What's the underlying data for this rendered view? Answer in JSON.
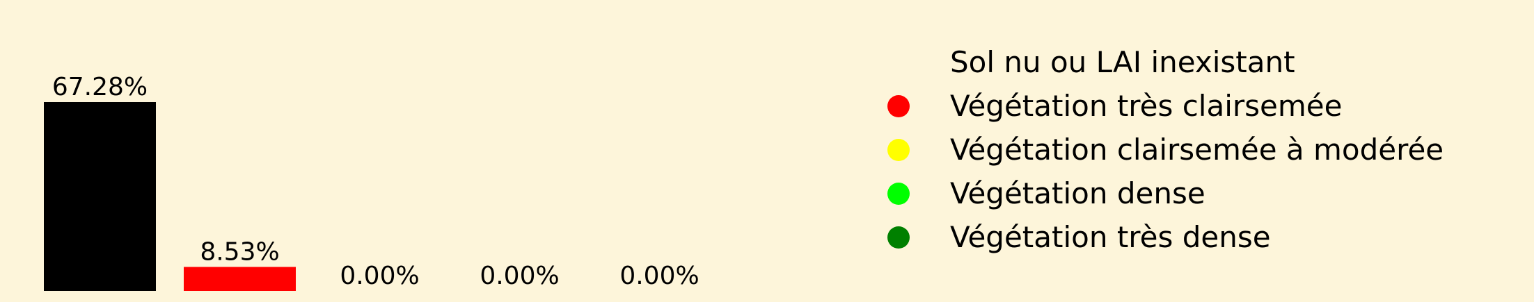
{
  "chart_data": {
    "type": "bar",
    "categories": [
      "Sol nu ou LAI inexistant",
      "Végétation très clairsemée",
      "Végétation clairsemée à modérée",
      "Végétation dense",
      "Végétation très dense"
    ],
    "values": [
      67.28,
      8.53,
      0.0,
      0.0,
      0.0
    ],
    "value_labels": [
      "67.28%",
      "8.53%",
      "0.00%",
      "0.00%",
      "0.00%"
    ],
    "colors": [
      "#000000",
      "#ff0000",
      "#ffff00",
      "#00ff00",
      "#008000"
    ],
    "legend_marker_colors": [
      "#fdf5da",
      "#ff0000",
      "#ffff00",
      "#00ff00",
      "#008000"
    ],
    "title": "",
    "xlabel": "",
    "ylabel": "",
    "ylim": [
      0,
      67.28
    ],
    "grid": false,
    "legend_position": "right",
    "background": "#fdf5da"
  }
}
